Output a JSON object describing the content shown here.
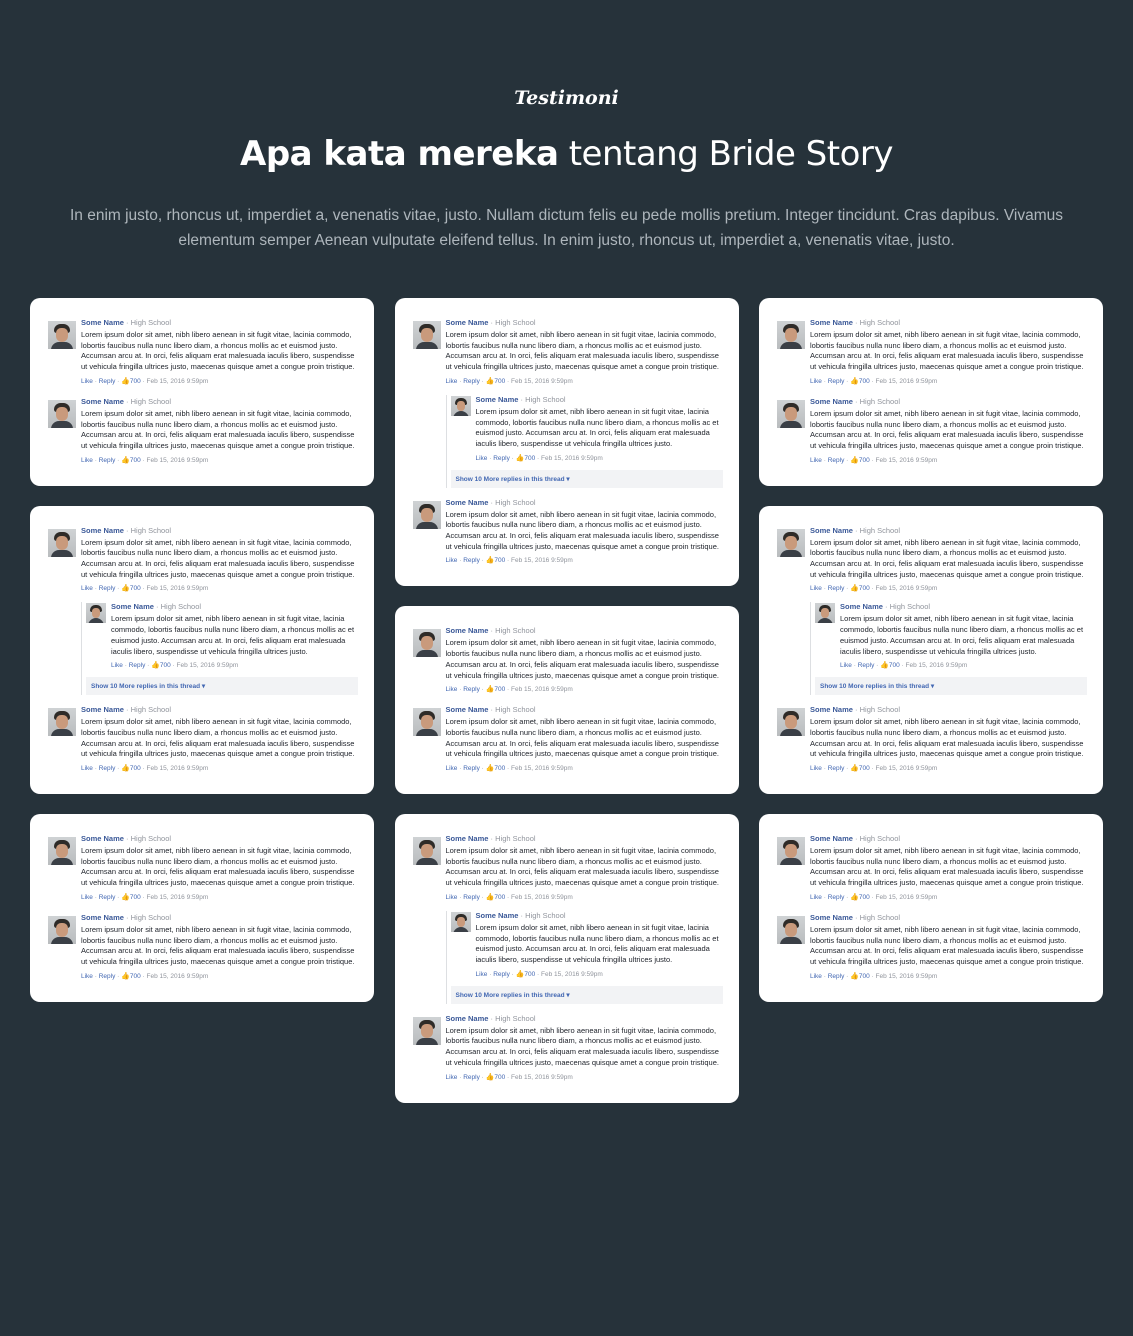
{
  "section": {
    "eyebrow": "Testimoni",
    "title_bold": "Apa kata mereka",
    "title_rest": "tentang Bride Story",
    "description": "In enim justo, rhoncus ut, imperdiet a, venenatis vitae, justo. Nullam dictum felis eu pede mollis pretium. Integer tincidunt. Cras dapibus. Vivamus elementum semper Aenean vulputate eleifend tellus. In enim justo, rhoncus ut, imperdiet a, venenatis vitae, justo."
  },
  "comment": {
    "name": "Some Name",
    "school": "High School",
    "text": "Lorem ipsum dolor sit amet, nibh libero aenean in sit fugit vitae, lacinia commodo, lobortis faucibus nulla nunc libero diam, a rhoncus mollis ac et euismod justo. Accumsan arcu at. In orci, felis aliquam erat malesuada iaculis libero, suspendisse ut vehicula fringilla ultrices justo, maecenas quisque amet a congue proin tristique.",
    "like": "Like",
    "reply": "Reply",
    "likes": "700",
    "date": "Feb 15, 2016 9:59pm"
  },
  "reply": {
    "name": "Some Name",
    "school": "High School",
    "text": "Lorem ipsum dolor sit amet, nibh libero aenean in sit fugit vitae, lacinia commodo, lobortis faucibus nulla nunc libero diam, a rhoncus mollis ac et euismod justo. Accumsan arcu at. In orci, felis aliquam erat malesuada iaculis libero, suspendisse ut vehicula fringilla ultrices justo.",
    "like": "Like",
    "reply": "Reply",
    "likes": "700",
    "date": "Feb 15, 2016 9:59pm"
  },
  "thread": {
    "show_more": "Show 10 More replies in this thread"
  },
  "columns": [
    [
      {
        "type": "simple"
      },
      {
        "type": "thread"
      },
      {
        "type": "simple"
      }
    ],
    [
      {
        "type": "thread"
      },
      {
        "type": "simple"
      },
      {
        "type": "thread"
      }
    ],
    [
      {
        "type": "simple"
      },
      {
        "type": "thread"
      },
      {
        "type": "simple"
      }
    ]
  ]
}
